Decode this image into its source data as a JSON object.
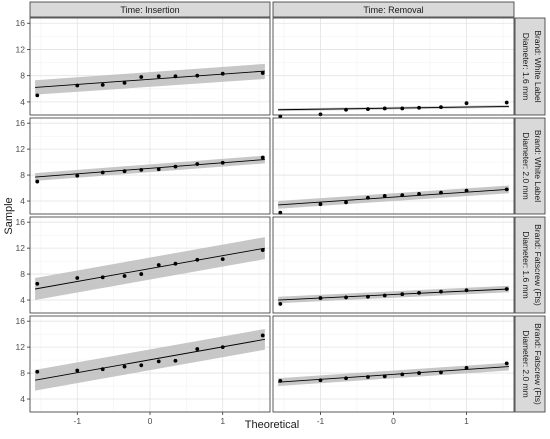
{
  "chart_data": {
    "type": "scatter",
    "kind": "faceted Q-Q plot with fitted line and confidence band",
    "xlabel": "Theoretical",
    "ylabel": "Sample",
    "x_ticks": [
      -1,
      0,
      1
    ],
    "xlim": [
      -1.65,
      1.65
    ],
    "y_ticks": [
      4,
      8,
      12,
      16
    ],
    "ylim": [
      2.0,
      16.8
    ],
    "grid": true,
    "columns": [
      "Time: Insertion",
      "Time: Removal"
    ],
    "rows": [
      [
        "Brand: White Label",
        "Diameter: 1.6 mm"
      ],
      [
        "Brand: White Label",
        "Diameter: 2.0 mm"
      ],
      [
        "Brand: Fatscrew (Fts)",
        "Diameter: 1.6 mm"
      ],
      [
        "Brand: Fatscrew (Fts)",
        "Diameter: 2.0 mm"
      ]
    ],
    "x": [
      -1.55,
      -1.0,
      -0.65,
      -0.35,
      -0.12,
      0.12,
      0.35,
      0.65,
      1.0,
      1.55
    ],
    "panels": [
      {
        "row": 0,
        "col": 0,
        "y": [
          5.0,
          6.5,
          6.6,
          6.9,
          7.8,
          7.9,
          7.9,
          8.0,
          8.3,
          8.4
        ],
        "line": [
          6.2,
          8.7
        ],
        "band": [
          [
            5.1,
            7.3
          ],
          [
            7.5,
            9.8
          ]
        ]
      },
      {
        "row": 0,
        "col": 1,
        "y": [
          1.8,
          2.1,
          2.8,
          2.9,
          3.0,
          3.0,
          3.1,
          3.2,
          3.8,
          3.9
        ],
        "line": [
          2.8,
          3.3
        ],
        "band": [
          [
            2.6,
            3.0
          ],
          [
            3.1,
            3.5
          ]
        ]
      },
      {
        "row": 1,
        "col": 0,
        "y": [
          7.0,
          7.9,
          8.4,
          8.6,
          8.8,
          8.9,
          9.3,
          9.7,
          9.9,
          10.7
        ],
        "line": [
          7.7,
          10.4
        ],
        "band": [
          [
            7.1,
            8.3
          ],
          [
            9.8,
            11.0
          ]
        ]
      },
      {
        "row": 1,
        "col": 1,
        "y": [
          2.2,
          3.5,
          3.8,
          4.5,
          4.8,
          4.9,
          5.1,
          5.3,
          5.6,
          5.8
        ],
        "line": [
          3.4,
          5.8
        ],
        "band": [
          [
            2.8,
            4.0
          ],
          [
            5.2,
            6.4
          ]
        ]
      },
      {
        "row": 2,
        "col": 0,
        "y": [
          6.5,
          7.4,
          7.5,
          7.7,
          8.0,
          9.4,
          9.6,
          10.2,
          10.3,
          11.7
        ],
        "line": [
          5.7,
          12.0
        ],
        "band": [
          [
            4.0,
            7.4
          ],
          [
            10.3,
            13.7
          ]
        ]
      },
      {
        "row": 2,
        "col": 1,
        "y": [
          3.4,
          4.3,
          4.4,
          4.5,
          4.7,
          4.9,
          5.1,
          5.3,
          5.5,
          5.7
        ],
        "line": [
          4.0,
          5.7
        ],
        "band": [
          [
            3.5,
            4.5
          ],
          [
            5.2,
            6.2
          ]
        ]
      },
      {
        "row": 3,
        "col": 0,
        "y": [
          8.2,
          8.4,
          8.6,
          9.0,
          9.2,
          9.8,
          9.9,
          11.7,
          12.0,
          13.8
        ],
        "line": [
          6.9,
          13.2
        ],
        "band": [
          [
            5.3,
            8.5
          ],
          [
            11.6,
            14.8
          ]
        ]
      },
      {
        "row": 3,
        "col": 1,
        "y": [
          6.8,
          6.9,
          7.2,
          7.4,
          7.5,
          7.8,
          8.0,
          8.1,
          8.8,
          9.5
        ],
        "line": [
          6.6,
          9.0
        ],
        "band": [
          [
            6.0,
            7.2
          ],
          [
            8.4,
            9.6
          ]
        ]
      }
    ]
  }
}
